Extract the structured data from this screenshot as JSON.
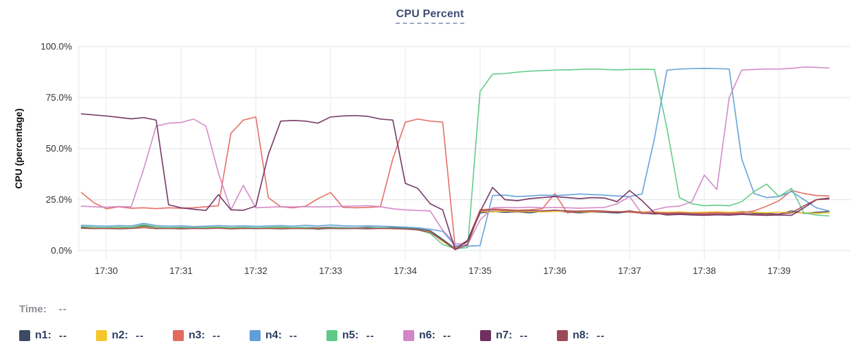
{
  "title": {
    "text": "CPU Percent"
  },
  "time_row": {
    "label": "Time:",
    "value": "--"
  },
  "legend": {
    "items": [
      {
        "name": "n1",
        "label": "n1:",
        "value": "--",
        "color": "#3d4a63"
      },
      {
        "name": "n2",
        "label": "n2:",
        "value": "--",
        "color": "#f5c62e"
      },
      {
        "name": "n3",
        "label": "n3:",
        "value": "--",
        "color": "#e26a60"
      },
      {
        "name": "n4",
        "label": "n4:",
        "value": "--",
        "color": "#5f9ed7"
      },
      {
        "name": "n5",
        "label": "n5:",
        "value": "--",
        "color": "#5ec987"
      },
      {
        "name": "n6",
        "label": "n6:",
        "value": "--",
        "color": "#d285c7"
      },
      {
        "name": "n7",
        "label": "n7:",
        "value": "--",
        "color": "#70305f"
      },
      {
        "name": "n8",
        "label": "n8:",
        "value": "--",
        "color": "#9c4a57"
      }
    ]
  },
  "chart_data": {
    "type": "line",
    "title": "CPU Percent",
    "xlabel": "",
    "ylabel": "CPU (percentage)",
    "ylim": [
      0,
      100
    ],
    "grid": true,
    "legend_position": "bottom",
    "y_ticks": [
      {
        "label": "100.0%",
        "value": 100
      },
      {
        "label": "75.0%",
        "value": 75
      },
      {
        "label": "50.0%",
        "value": 50
      },
      {
        "label": "25.0%",
        "value": 25
      },
      {
        "label": "0.0%",
        "value": 0
      }
    ],
    "x_ticks": [
      {
        "label": "17:30",
        "t": 0
      },
      {
        "label": "17:31",
        "t": 1
      },
      {
        "label": "17:32",
        "t": 2
      },
      {
        "label": "17:33",
        "t": 3
      },
      {
        "label": "17:34",
        "t": 4
      },
      {
        "label": "17:35",
        "t": 5
      },
      {
        "label": "17:36",
        "t": 6
      },
      {
        "label": "17:37",
        "t": 7
      },
      {
        "label": "17:38",
        "t": 8
      },
      {
        "label": "17:39",
        "t": 9
      }
    ],
    "x_unit": "minutes after 17:30",
    "x": [
      -0.333,
      -0.167,
      0,
      0.167,
      0.333,
      0.5,
      0.667,
      0.833,
      1,
      1.167,
      1.333,
      1.5,
      1.667,
      1.833,
      2,
      2.167,
      2.333,
      2.5,
      2.667,
      2.833,
      3,
      3.167,
      3.333,
      3.5,
      3.667,
      3.833,
      4,
      4.167,
      4.333,
      4.5,
      4.667,
      4.833,
      5,
      5.167,
      5.333,
      5.5,
      5.667,
      5.833,
      6,
      6.167,
      6.333,
      6.5,
      6.667,
      6.833,
      7,
      7.167,
      7.333,
      7.5,
      7.667,
      7.833,
      8,
      8.167,
      8.333,
      8.5,
      8.667,
      8.833,
      9,
      9.167,
      9.333,
      9.5,
      9.667
    ],
    "series": [
      {
        "name": "n1",
        "color": "#3d4a63",
        "values": [
          11.4,
          11.2,
          11.3,
          11.5,
          11.2,
          12.2,
          11.5,
          11.2,
          11.4,
          11.1,
          11.3,
          11.5,
          11.2,
          11.4,
          11.1,
          11.3,
          11.5,
          11.2,
          11.4,
          11.2,
          11.5,
          11.3,
          11.1,
          11.4,
          11.2,
          11.3,
          11.0,
          10.6,
          9.8,
          5.5,
          1.0,
          4.5,
          18.5,
          19.2,
          18.8,
          19.0,
          18.6,
          19.3,
          19.8,
          18.9,
          18.6,
          19.0,
          18.8,
          18.5,
          19.0,
          18.4,
          18.0,
          18.3,
          18.6,
          18.2,
          18.5,
          18.8,
          18.4,
          19.2,
          18.6,
          18.3,
          17.9,
          19.5,
          18.3,
          18.8,
          19.2
        ]
      },
      {
        "name": "n2",
        "color": "#f5c62e",
        "values": [
          11.0,
          10.9,
          11.1,
          10.8,
          11.0,
          11.6,
          10.9,
          11.1,
          10.8,
          11.0,
          10.9,
          11.1,
          10.8,
          11.0,
          10.9,
          11.1,
          10.8,
          11.0,
          11.1,
          10.9,
          11.0,
          10.8,
          11.0,
          10.9,
          11.1,
          10.8,
          10.7,
          10.3,
          9.2,
          4.5,
          0.8,
          5.0,
          19.3,
          19.0,
          19.4,
          19.1,
          19.3,
          19.0,
          19.2,
          19.4,
          19.1,
          19.0,
          19.3,
          19.1,
          18.9,
          19.2,
          19.0,
          18.8,
          19.0,
          18.7,
          18.9,
          19.1,
          18.8,
          19.0,
          18.8,
          18.6,
          18.9,
          18.7,
          18.5,
          18.3,
          18.6
        ]
      },
      {
        "name": "n3",
        "color": "#e26a60",
        "values": [
          28.5,
          23.5,
          20.5,
          21.5,
          20.8,
          21.0,
          20.6,
          21.0,
          20.8,
          21.0,
          21.5,
          22.0,
          57.5,
          64.0,
          65.5,
          26.0,
          21.5,
          21.0,
          21.8,
          25.5,
          28.5,
          21.2,
          21.0,
          21.2,
          21.5,
          45.0,
          63.0,
          64.5,
          63.5,
          63.0,
          1.5,
          5.0,
          20.0,
          20.5,
          20.2,
          19.8,
          20.0,
          20.5,
          28.0,
          18.5,
          19.5,
          19.3,
          19.0,
          19.2,
          18.8,
          18.5,
          18.7,
          18.5,
          18.6,
          18.4,
          18.3,
          18.5,
          18.4,
          18.6,
          19.5,
          21.8,
          24.5,
          29.5,
          28.0,
          27.0,
          26.8
        ]
      },
      {
        "name": "n4",
        "color": "#5f9ed7",
        "values": [
          12.4,
          12.2,
          12.0,
          12.3,
          12.1,
          13.4,
          12.3,
          12.0,
          12.2,
          11.8,
          12.0,
          12.3,
          12.0,
          12.2,
          11.9,
          12.1,
          12.3,
          12.0,
          12.4,
          12.1,
          12.6,
          12.2,
          12.0,
          12.2,
          12.0,
          11.8,
          11.5,
          11.2,
          10.5,
          9.5,
          2.5,
          2.2,
          2.5,
          27.0,
          27.2,
          26.5,
          26.8,
          27.2,
          27.0,
          27.3,
          27.8,
          27.5,
          27.2,
          26.8,
          26.5,
          27.8,
          55.0,
          88.5,
          89.0,
          89.2,
          89.3,
          89.2,
          89.0,
          45.0,
          28.0,
          26.0,
          26.5,
          29.0,
          25.0,
          21.0,
          19.5
        ]
      },
      {
        "name": "n5",
        "color": "#5ec987",
        "values": [
          11.8,
          11.5,
          11.3,
          11.6,
          11.4,
          12.8,
          11.6,
          11.3,
          11.5,
          11.2,
          11.4,
          11.6,
          11.3,
          11.5,
          11.2,
          11.4,
          11.7,
          11.3,
          11.5,
          10.4,
          11.4,
          11.2,
          11.0,
          11.0,
          11.3,
          11.0,
          10.8,
          10.2,
          8.5,
          3.0,
          1.0,
          1.5,
          78.0,
          86.5,
          86.8,
          87.5,
          88.0,
          88.2,
          88.5,
          88.6,
          88.8,
          89.0,
          88.8,
          88.6,
          88.8,
          88.9,
          88.8,
          60.0,
          26.0,
          23.0,
          22.0,
          22.3,
          22.0,
          24.0,
          29.0,
          32.6,
          26.5,
          30.5,
          18.5,
          17.5,
          17.0
        ]
      },
      {
        "name": "n6",
        "color": "#d285c7",
        "values": [
          21.8,
          21.5,
          21.3,
          21.6,
          21.5,
          40.0,
          61.0,
          62.5,
          62.8,
          64.5,
          61.0,
          38.0,
          20.0,
          32.0,
          21.0,
          21.3,
          21.5,
          21.4,
          21.6,
          21.4,
          21.5,
          21.7,
          21.9,
          22.0,
          21.5,
          20.5,
          20.0,
          19.7,
          19.5,
          10.0,
          3.5,
          3.0,
          15.0,
          21.0,
          21.2,
          21.0,
          21.3,
          21.0,
          21.2,
          21.0,
          20.8,
          21.0,
          21.2,
          23.0,
          26.5,
          18.0,
          20.0,
          21.4,
          21.8,
          24.0,
          37.0,
          30.0,
          75.0,
          88.5,
          88.8,
          89.0,
          89.0,
          89.3,
          90.0,
          89.8,
          89.5
        ]
      },
      {
        "name": "n7",
        "color": "#70305f",
        "values": [
          67.0,
          66.5,
          66.0,
          65.3,
          64.6,
          65.2,
          64.0,
          22.5,
          21.0,
          20.3,
          19.7,
          27.5,
          20.0,
          19.8,
          21.8,
          47.0,
          63.5,
          63.8,
          63.5,
          62.5,
          65.5,
          66.0,
          66.2,
          65.8,
          64.5,
          64.0,
          33.0,
          30.5,
          23.0,
          20.0,
          0.5,
          5.0,
          19.0,
          31.0,
          25.0,
          24.5,
          25.5,
          26.0,
          26.5,
          26.0,
          25.5,
          26.0,
          25.8,
          24.0,
          29.5,
          24.5,
          18.5,
          17.5,
          17.8,
          17.5,
          17.3,
          17.6,
          17.4,
          17.8,
          17.5,
          17.3,
          17.5,
          17.3,
          21.0,
          25.0,
          25.8
        ]
      },
      {
        "name": "n8",
        "color": "#9c4a57",
        "values": [
          11.0,
          10.8,
          10.9,
          10.7,
          10.9,
          11.3,
          10.8,
          10.9,
          10.7,
          10.9,
          10.8,
          11.0,
          10.7,
          10.9,
          10.8,
          10.9,
          10.7,
          10.9,
          10.8,
          10.7,
          10.9,
          10.8,
          10.9,
          10.7,
          10.9,
          10.8,
          10.6,
          10.2,
          9.0,
          5.0,
          0.5,
          3.0,
          19.5,
          20.0,
          19.8,
          19.5,
          19.7,
          19.5,
          19.8,
          19.5,
          19.3,
          19.6,
          19.4,
          18.8,
          19.5,
          18.5,
          18.2,
          18.0,
          18.3,
          18.0,
          17.8,
          18.0,
          17.9,
          18.2,
          18.0,
          17.8,
          18.0,
          18.5,
          22.0,
          25.0,
          25.3
        ]
      }
    ]
  }
}
